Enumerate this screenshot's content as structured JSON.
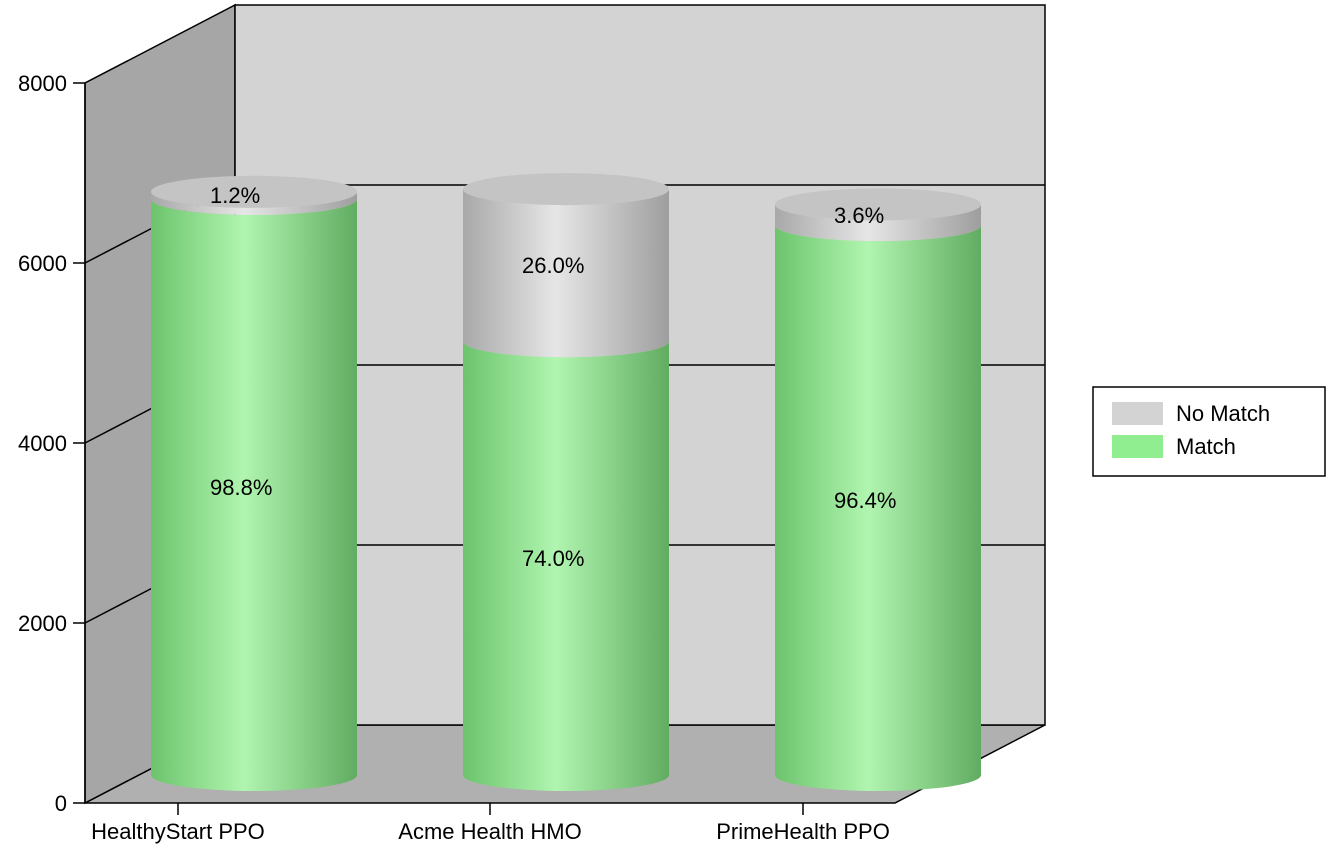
{
  "chart_data": {
    "type": "bar",
    "stacked": true,
    "style": "3d-cylinder",
    "categories": [
      "HealthyStart PPO",
      "Acme Health HMO",
      "PrimeHealth PPO"
    ],
    "series": [
      {
        "name": "Match",
        "color": "#90ee90",
        "values": [
          6400,
          4820,
          6110
        ],
        "labels": [
          "98.8%",
          "74.0%",
          "96.4%"
        ]
      },
      {
        "name": "No Match",
        "color": "#d3d3d3",
        "values": [
          80,
          1690,
          230
        ],
        "labels": [
          "1.2%",
          "26.0%",
          "3.6%"
        ]
      }
    ],
    "ylim": [
      0,
      8000
    ],
    "yticks": [
      0,
      2000,
      4000,
      6000,
      8000
    ],
    "grid": true,
    "legend": {
      "position": "right",
      "entries": [
        "No Match",
        "Match"
      ]
    }
  }
}
